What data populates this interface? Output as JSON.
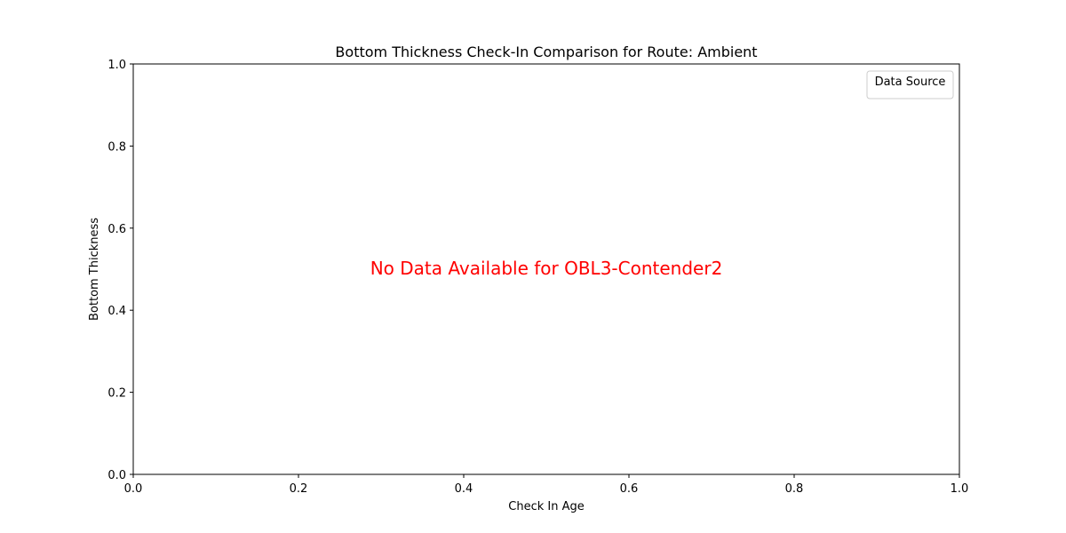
{
  "chart_data": {
    "type": "scatter",
    "title": "Bottom Thickness Check-In Comparison for Route: Ambient",
    "xlabel": "Check In Age",
    "ylabel": "Bottom Thickness",
    "xlim": [
      0.0,
      1.0
    ],
    "ylim": [
      0.0,
      1.0
    ],
    "xticks": [
      "0.0",
      "0.2",
      "0.4",
      "0.6",
      "0.8",
      "1.0"
    ],
    "yticks": [
      "0.0",
      "0.2",
      "0.4",
      "0.6",
      "0.8",
      "1.0"
    ],
    "series": [],
    "grid": false,
    "legend": {
      "title": "Data Source",
      "placement": "top-right",
      "entries": []
    },
    "annotation": {
      "text": "No Data Available for OBL3-Contender2",
      "color": "#ff0000"
    }
  }
}
